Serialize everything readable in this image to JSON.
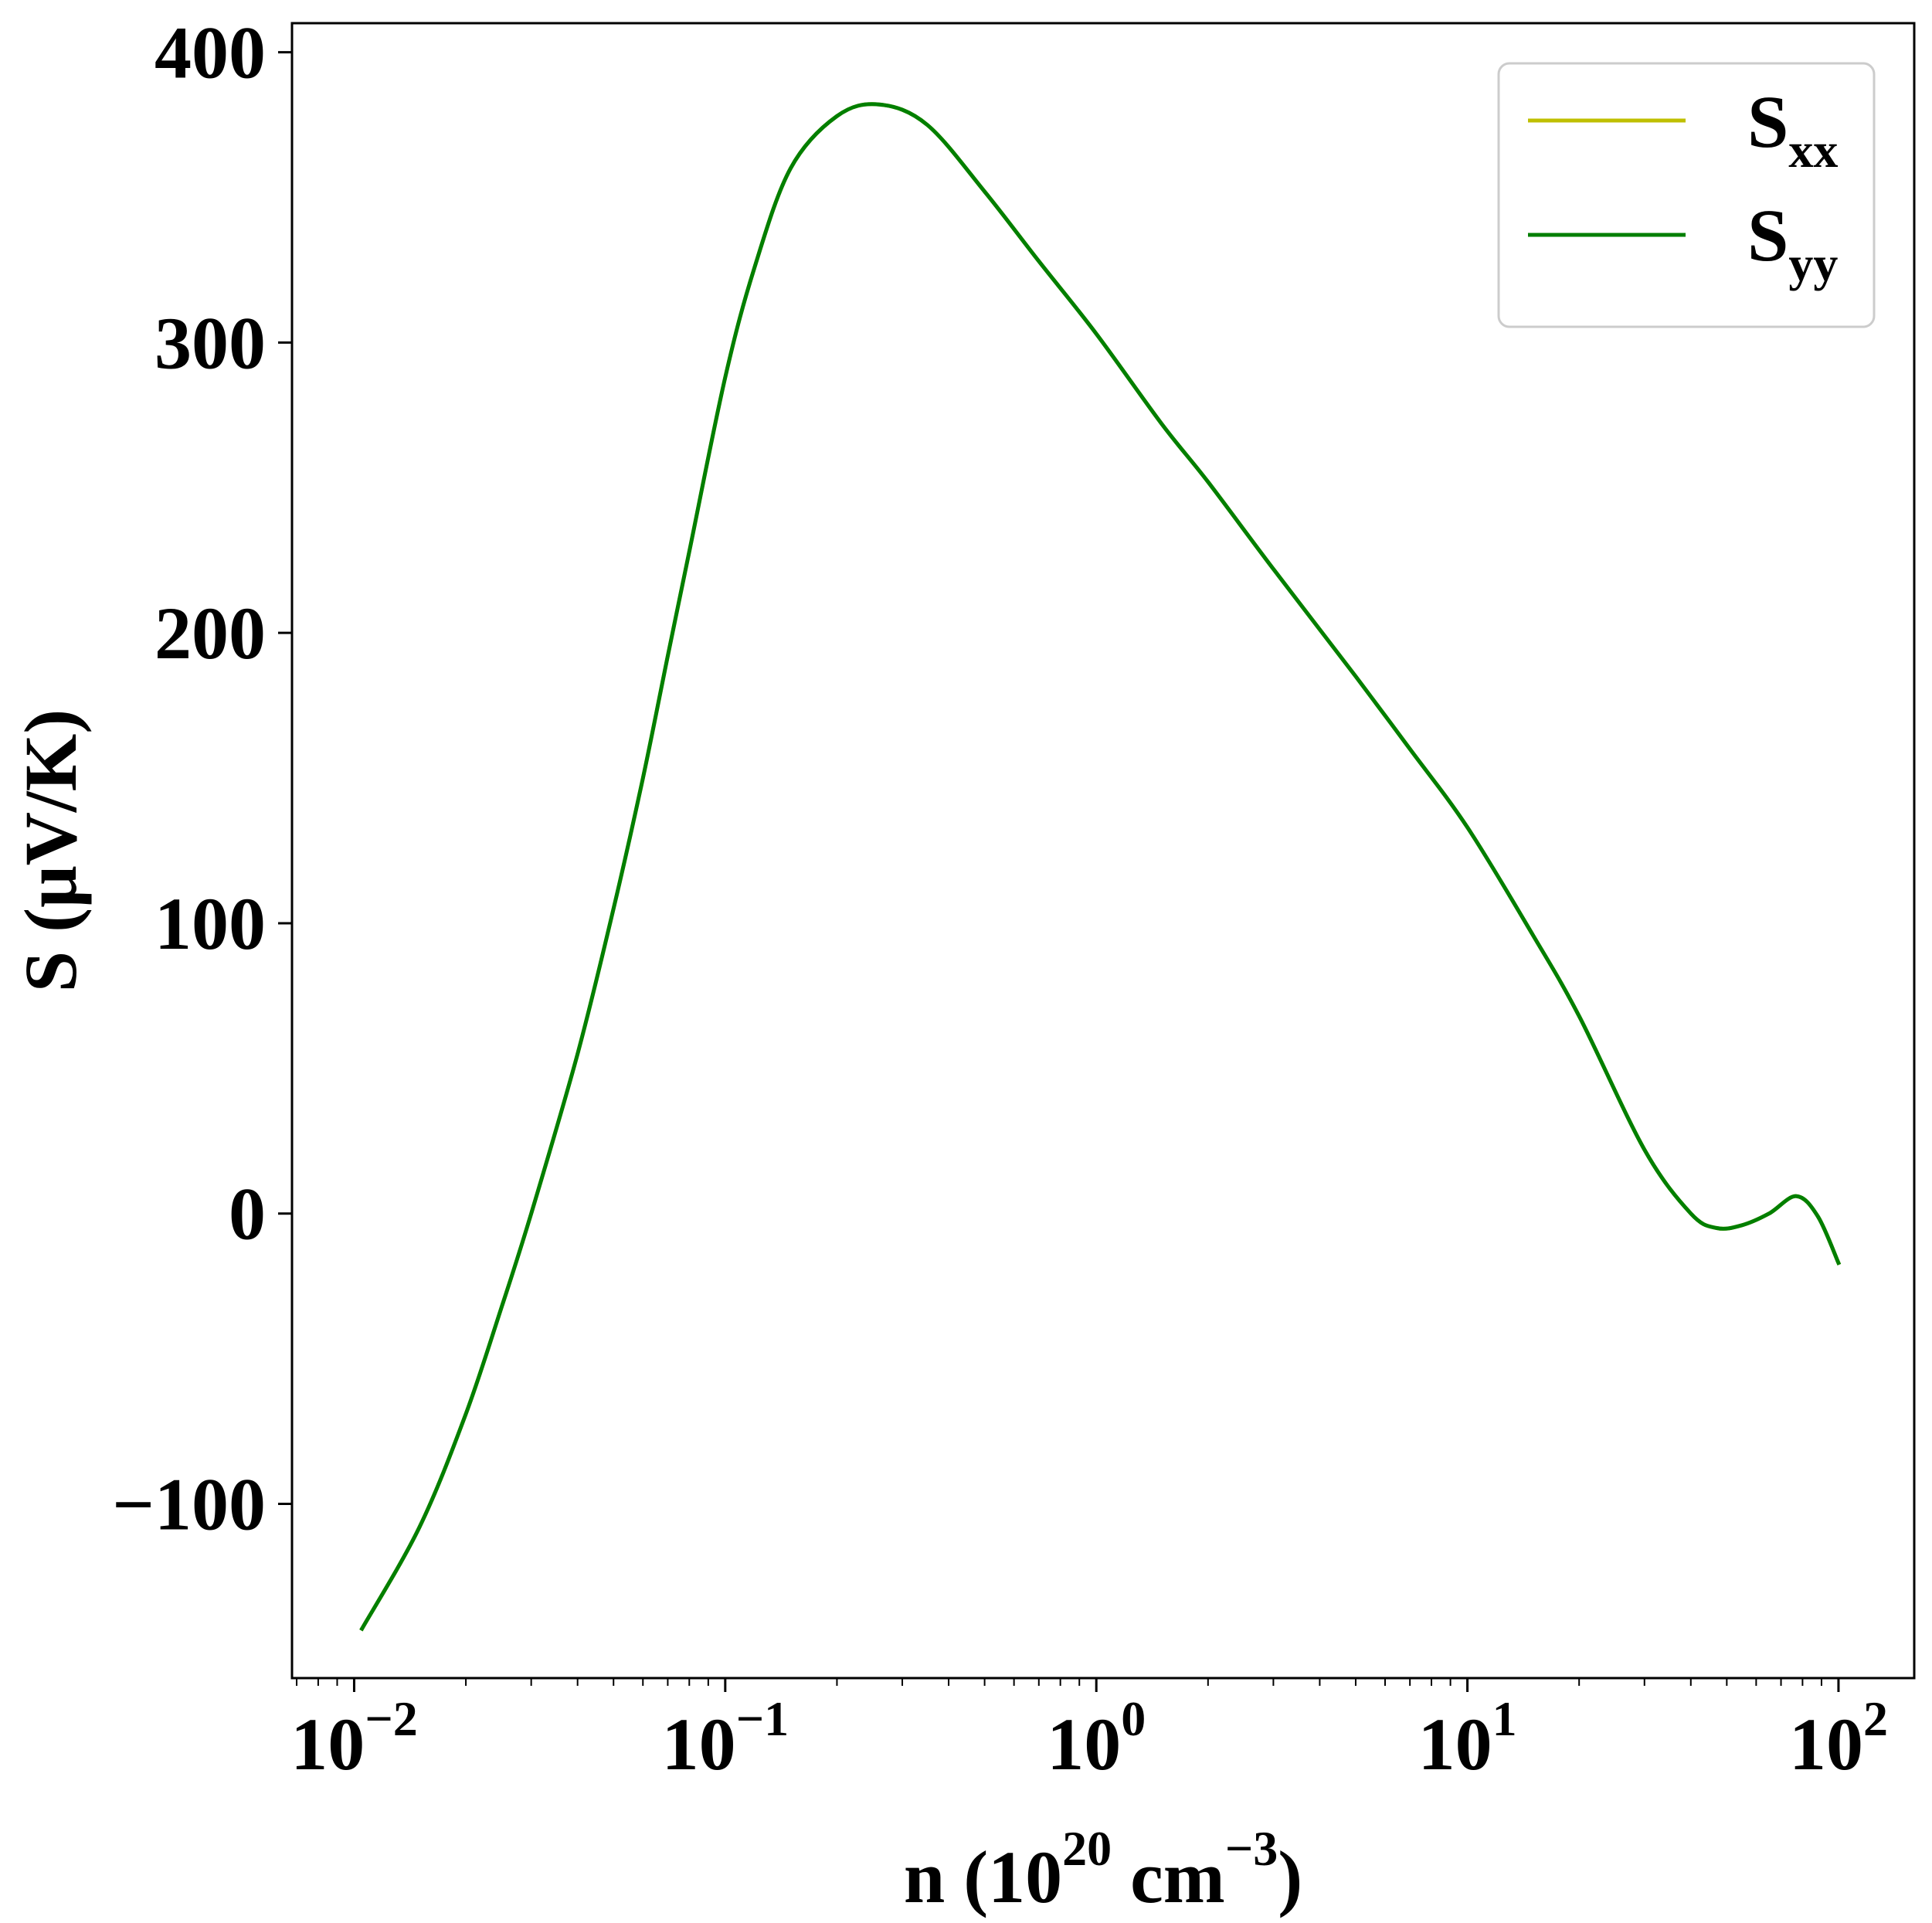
{
  "chart_data": {
    "type": "line",
    "title": "",
    "xlabel": {
      "main": "n (10",
      "exp1": "20",
      "unit": " cm",
      "exp2": "−3",
      "close": ")"
    },
    "ylabel": "S (μV/K)",
    "xscale": "log",
    "xlim": [
      0.0068,
      160
    ],
    "ylim": [
      -160,
      410
    ],
    "xticks": [
      {
        "value": 0.01,
        "base": "10",
        "exp": "−2"
      },
      {
        "value": 0.1,
        "base": "10",
        "exp": "−1"
      },
      {
        "value": 1,
        "base": "10",
        "exp": "0"
      },
      {
        "value": 10,
        "base": "10",
        "exp": "1"
      },
      {
        "value": 100,
        "base": "10",
        "exp": "2"
      }
    ],
    "yticks": [
      {
        "value": -100,
        "label": "−100"
      },
      {
        "value": 0,
        "label": "0"
      },
      {
        "value": 100,
        "label": "100"
      },
      {
        "value": 200,
        "label": "200"
      },
      {
        "value": 300,
        "label": "300"
      },
      {
        "value": 400,
        "label": "400"
      }
    ],
    "grid": false,
    "legend_position": "top-right",
    "series": [
      {
        "name": "S",
        "subscript": "xx",
        "color": "#bfbf00",
        "x": [
          0.0105,
          0.015,
          0.02,
          0.025,
          0.03,
          0.04,
          0.05,
          0.06,
          0.07,
          0.08,
          0.1,
          0.12,
          0.15,
          0.2,
          0.26,
          0.35,
          0.5,
          0.7,
          1.0,
          1.5,
          2.0,
          3.0,
          5.0,
          7.0,
          10.0,
          15.0,
          20.0,
          30.0,
          40.0,
          47.0,
          55.0,
          65.0,
          77.0,
          88.0,
          100.0
        ],
        "y": [
          -143,
          -108,
          -69,
          -32,
          0,
          55,
          105,
          150,
          192,
          228,
          288,
          326,
          360,
          378,
          382,
          375,
          352,
          328,
          303,
          272,
          252,
          222,
          185,
          160,
          133,
          96,
          68,
          22,
          0,
          -5,
          -4,
          0,
          6,
          -1,
          -17
        ]
      },
      {
        "name": "S",
        "subscript": "yy",
        "color": "#007f00",
        "x": [
          0.0105,
          0.015,
          0.02,
          0.025,
          0.03,
          0.04,
          0.05,
          0.06,
          0.07,
          0.08,
          0.1,
          0.12,
          0.15,
          0.2,
          0.26,
          0.35,
          0.5,
          0.7,
          1.0,
          1.5,
          2.0,
          3.0,
          5.0,
          7.0,
          10.0,
          15.0,
          20.0,
          30.0,
          40.0,
          47.0,
          55.0,
          65.0,
          77.0,
          88.0,
          100.0
        ],
        "y": [
          -143,
          -108,
          -69,
          -32,
          0,
          55,
          105,
          150,
          192,
          228,
          288,
          326,
          360,
          378,
          382,
          375,
          352,
          328,
          303,
          272,
          252,
          222,
          185,
          160,
          133,
          96,
          68,
          22,
          0,
          -5,
          -4,
          0,
          6,
          -1,
          -17
        ]
      }
    ]
  }
}
